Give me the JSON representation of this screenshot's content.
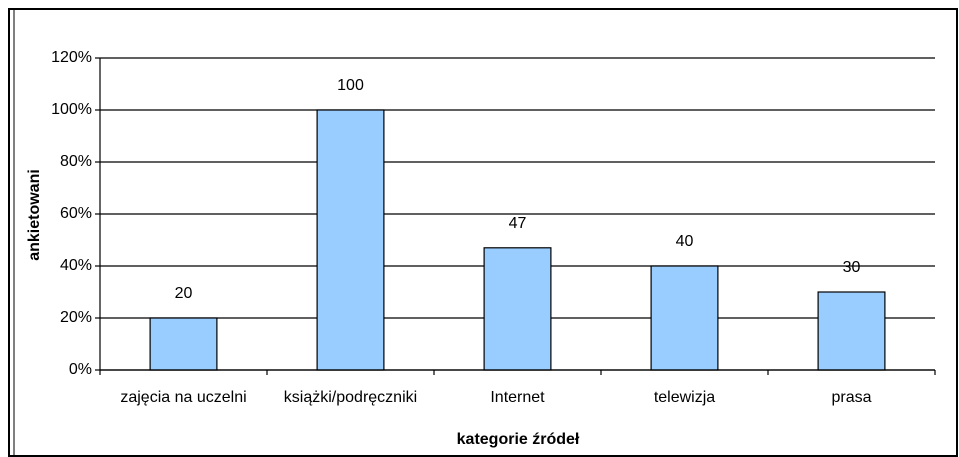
{
  "chart_data": {
    "type": "bar",
    "categories": [
      "zajęcia na uczelni",
      "książki/podręczniki",
      "Internet",
      "telewizja",
      "prasa"
    ],
    "values": [
      20,
      100,
      47,
      40,
      30
    ],
    "color": "#99ccff",
    "xlabel": "kategorie źródeł",
    "ylabel": "ankietowani",
    "ylim": [
      0,
      120
    ],
    "yticks": [
      {
        "value": 0,
        "label": "0%"
      },
      {
        "value": 20,
        "label": "20%"
      },
      {
        "value": 40,
        "label": "40%"
      },
      {
        "value": 60,
        "label": "60%"
      },
      {
        "value": 80,
        "label": "80%"
      },
      {
        "value": 100,
        "label": "100%"
      },
      {
        "value": 120,
        "label": "120%"
      }
    ],
    "grid": true
  }
}
